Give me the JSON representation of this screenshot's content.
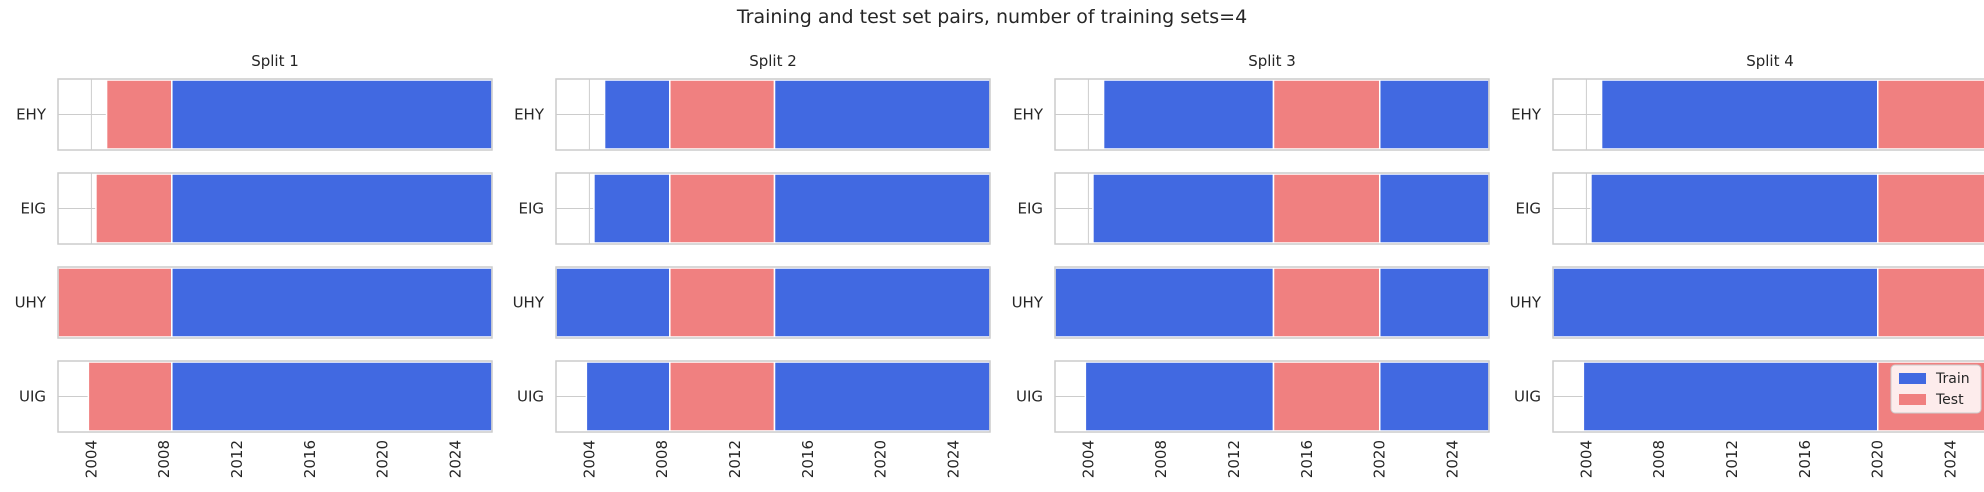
{
  "title": "Training and test set pairs, number of training sets=4",
  "colors": {
    "train": "#4169e1",
    "test": "#f08080",
    "frame": "#cccccc",
    "grid": "#cccccc",
    "text": "#262626"
  },
  "legend": {
    "placement": "lower right",
    "subplot": 4,
    "entries": [
      "Train",
      "Test"
    ]
  },
  "chart_data": {
    "type": "bar",
    "orientation": "horizontal-timeline",
    "x_axis": {
      "type": "date",
      "xlim": [
        "2002-03-01",
        "2026-01-01"
      ],
      "ticks": [
        "2004",
        "2008",
        "2012",
        "2016",
        "2020",
        "2024"
      ],
      "tick_rotation": 90
    },
    "cross_sections": [
      "EHY",
      "EIG",
      "UHY",
      "UIG"
    ],
    "grid": true,
    "splits": [
      {
        "title": "Split 1",
        "rows": [
          {
            "label": "EHY",
            "segments": [
              {
                "set": "Test",
                "start": "2004-11-01",
                "end": "2008-06-01"
              },
              {
                "set": "Train",
                "start": "2008-06-01",
                "end": "2026-01-01"
              }
            ]
          },
          {
            "label": "EIG",
            "segments": [
              {
                "set": "Test",
                "start": "2004-04-01",
                "end": "2008-06-01"
              },
              {
                "set": "Train",
                "start": "2008-06-01",
                "end": "2026-01-01"
              }
            ]
          },
          {
            "label": "UHY",
            "segments": [
              {
                "set": "Test",
                "start": "2002-03-01",
                "end": "2008-06-01"
              },
              {
                "set": "Train",
                "start": "2008-06-01",
                "end": "2026-01-01"
              }
            ]
          },
          {
            "label": "UIG",
            "segments": [
              {
                "set": "Test",
                "start": "2003-11-01",
                "end": "2008-06-01"
              },
              {
                "set": "Train",
                "start": "2008-06-01",
                "end": "2026-01-01"
              }
            ]
          }
        ]
      },
      {
        "title": "Split 2",
        "rows": [
          {
            "label": "EHY",
            "segments": [
              {
                "set": "Train",
                "start": "2004-11-01",
                "end": "2008-06-01"
              },
              {
                "set": "Test",
                "start": "2008-06-01",
                "end": "2014-03-01"
              },
              {
                "set": "Train",
                "start": "2014-03-01",
                "end": "2026-01-01"
              }
            ]
          },
          {
            "label": "EIG",
            "segments": [
              {
                "set": "Train",
                "start": "2004-04-01",
                "end": "2008-06-01"
              },
              {
                "set": "Test",
                "start": "2008-06-01",
                "end": "2014-03-01"
              },
              {
                "set": "Train",
                "start": "2014-03-01",
                "end": "2026-01-01"
              }
            ]
          },
          {
            "label": "UHY",
            "segments": [
              {
                "set": "Train",
                "start": "2002-03-01",
                "end": "2008-06-01"
              },
              {
                "set": "Test",
                "start": "2008-06-01",
                "end": "2014-03-01"
              },
              {
                "set": "Train",
                "start": "2014-03-01",
                "end": "2026-01-01"
              }
            ]
          },
          {
            "label": "UIG",
            "segments": [
              {
                "set": "Train",
                "start": "2003-11-01",
                "end": "2008-06-01"
              },
              {
                "set": "Test",
                "start": "2008-06-01",
                "end": "2014-03-01"
              },
              {
                "set": "Train",
                "start": "2014-03-01",
                "end": "2026-01-01"
              }
            ]
          }
        ]
      },
      {
        "title": "Split 3",
        "rows": [
          {
            "label": "EHY",
            "segments": [
              {
                "set": "Train",
                "start": "2004-11-01",
                "end": "2014-03-01"
              },
              {
                "set": "Test",
                "start": "2014-03-01",
                "end": "2020-01-01"
              },
              {
                "set": "Train",
                "start": "2020-01-01",
                "end": "2026-01-01"
              }
            ]
          },
          {
            "label": "EIG",
            "segments": [
              {
                "set": "Train",
                "start": "2004-04-01",
                "end": "2014-03-01"
              },
              {
                "set": "Test",
                "start": "2014-03-01",
                "end": "2020-01-01"
              },
              {
                "set": "Train",
                "start": "2020-01-01",
                "end": "2026-01-01"
              }
            ]
          },
          {
            "label": "UHY",
            "segments": [
              {
                "set": "Train",
                "start": "2002-03-01",
                "end": "2014-03-01"
              },
              {
                "set": "Test",
                "start": "2014-03-01",
                "end": "2020-01-01"
              },
              {
                "set": "Train",
                "start": "2020-01-01",
                "end": "2026-01-01"
              }
            ]
          },
          {
            "label": "UIG",
            "segments": [
              {
                "set": "Train",
                "start": "2003-11-01",
                "end": "2014-03-01"
              },
              {
                "set": "Test",
                "start": "2014-03-01",
                "end": "2020-01-01"
              },
              {
                "set": "Train",
                "start": "2020-01-01",
                "end": "2026-01-01"
              }
            ]
          }
        ]
      },
      {
        "title": "Split 4",
        "rows": [
          {
            "label": "EHY",
            "segments": [
              {
                "set": "Train",
                "start": "2004-11-01",
                "end": "2020-01-01"
              },
              {
                "set": "Test",
                "start": "2020-01-01",
                "end": "2026-01-01"
              }
            ]
          },
          {
            "label": "EIG",
            "segments": [
              {
                "set": "Train",
                "start": "2004-04-01",
                "end": "2020-01-01"
              },
              {
                "set": "Test",
                "start": "2020-01-01",
                "end": "2026-01-01"
              }
            ]
          },
          {
            "label": "UHY",
            "segments": [
              {
                "set": "Train",
                "start": "2002-03-01",
                "end": "2020-01-01"
              },
              {
                "set": "Test",
                "start": "2020-01-01",
                "end": "2026-01-01"
              }
            ]
          },
          {
            "label": "UIG",
            "segments": [
              {
                "set": "Train",
                "start": "2003-11-01",
                "end": "2020-01-01"
              },
              {
                "set": "Test",
                "start": "2020-01-01",
                "end": "2026-01-01"
              }
            ]
          }
        ]
      }
    ]
  }
}
